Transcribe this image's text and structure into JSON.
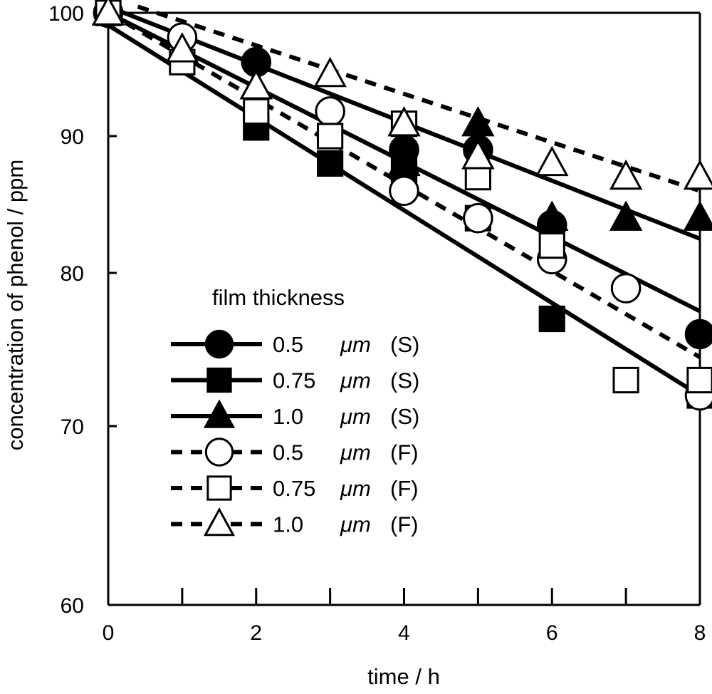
{
  "chart_data": {
    "type": "line",
    "title": "",
    "xlabel": "time / h",
    "ylabel": "concentration of phenol / ppm",
    "xlim": [
      0,
      8
    ],
    "ylim": [
      60,
      100
    ],
    "x_ticks_major": [
      0,
      2,
      4,
      6,
      8
    ],
    "x_ticks_minor": [
      1,
      3,
      5,
      7
    ],
    "y_ticks": [
      60,
      70,
      80,
      90,
      100
    ],
    "x_tick_labels": [
      "0",
      "2",
      "4",
      "6",
      "8"
    ],
    "y_tick_labels": [
      "60",
      "70",
      "80",
      "90",
      "100"
    ],
    "grid": false,
    "legend": {
      "title": "film thickness",
      "placement": "center-left",
      "entries": [
        {
          "thickness": "0.5",
          "unit": "μm",
          "type": "(S)"
        },
        {
          "thickness": "0.75",
          "unit": "μm",
          "type": "(S)"
        },
        {
          "thickness": "1.0",
          "unit": "μm",
          "type": "(S)"
        },
        {
          "thickness": "0.5",
          "unit": "μm",
          "type": "(F)"
        },
        {
          "thickness": "0.75",
          "unit": "μm",
          "type": "(F)"
        },
        {
          "thickness": "1.0",
          "unit": "μm",
          "type": "(F)"
        }
      ]
    },
    "series": [
      {
        "name": "0.5 μm (S)",
        "marker": "circle",
        "filled": true,
        "line": "solid",
        "x": [
          0,
          2,
          4,
          5,
          6,
          8
        ],
        "y": [
          100,
          96,
          89,
          89,
          83.5,
          76
        ],
        "fit": {
          "x": [
            0,
            8
          ],
          "y": [
            100,
            77.5
          ]
        }
      },
      {
        "name": "0.75 μm (S)",
        "marker": "square",
        "filled": true,
        "line": "solid",
        "x": [
          0,
          2,
          3,
          4,
          5,
          6,
          8
        ],
        "y": [
          100,
          90.7,
          88,
          87.5,
          84,
          77,
          72
        ],
        "fit": {
          "x": [
            0,
            8
          ],
          "y": [
            99,
            72
          ]
        }
      },
      {
        "name": "1.0 μm (S)",
        "marker": "triangle",
        "filled": true,
        "line": "solid",
        "x": [
          0,
          2,
          4,
          5,
          6,
          7,
          8
        ],
        "y": [
          100,
          94,
          88,
          91,
          84,
          84,
          84
        ],
        "fit": {
          "x": [
            0,
            8
          ],
          "y": [
            100.5,
            82.5
          ]
        }
      },
      {
        "name": "0.5 μm (F)",
        "marker": "circle",
        "filled": false,
        "line": "dashed",
        "x": [
          0,
          1,
          3,
          4,
          5,
          6,
          7,
          8
        ],
        "y": [
          100,
          98,
          92,
          86,
          84,
          81,
          79,
          72
        ],
        "fit": {
          "x": [
            0,
            8
          ],
          "y": [
            100,
            74.5
          ]
        }
      },
      {
        "name": "0.75 μm (F)",
        "marker": "square",
        "filled": false,
        "line": "dashed",
        "x": [
          0,
          1,
          2,
          3,
          4,
          5,
          6,
          7,
          8
        ],
        "y": [
          100,
          96,
          92,
          90,
          91,
          87,
          82,
          73,
          73
        ],
        "fit": null
      },
      {
        "name": "1.0 μm (F)",
        "marker": "triangle",
        "filled": false,
        "line": "dashed",
        "x": [
          0,
          1,
          2,
          3,
          4,
          5,
          6,
          7,
          8
        ],
        "y": [
          100,
          97,
          94,
          95,
          91,
          88.5,
          88,
          87,
          87
        ],
        "fit": {
          "x": [
            0.4,
            8
          ],
          "y": [
            100.5,
            86
          ]
        }
      }
    ]
  }
}
